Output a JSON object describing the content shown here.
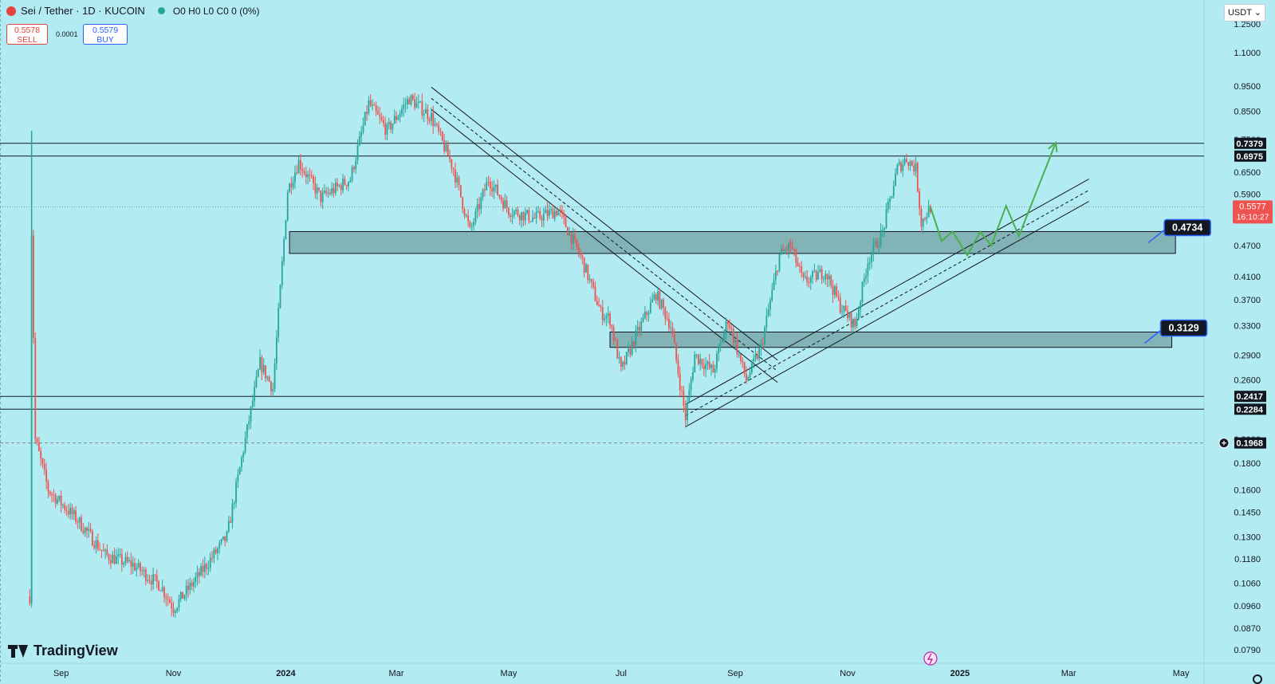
{
  "header": {
    "symbol": "Sei / Tether · 1D · KUCOIN",
    "ohlc": "O0 H0 L0 C0 0 (0%)"
  },
  "trade": {
    "sell_price": "0.5578",
    "sell_label": "SELL",
    "spread": "0.0001",
    "buy_price": "0.5579",
    "buy_label": "BUY"
  },
  "currency": "USDT",
  "brand": "TradingView",
  "colors": {
    "background": "#b2ebf2",
    "up": "#26a69a",
    "down": "#ef5350",
    "projection": "#4caf50",
    "last_price": "#ef5350"
  },
  "chart_data": {
    "type": "candlestick",
    "y_scale": "log",
    "ylim": [
      0.075,
      1.35
    ],
    "y_ticks": [
      "1.2500",
      "1.1000",
      "0.9500",
      "0.8500",
      "0.7500",
      "0.6500",
      "0.5900",
      "0.5300",
      "0.4700",
      "0.4100",
      "0.3700",
      "0.3300",
      "0.2900",
      "0.2600",
      "0.2000",
      "0.1800",
      "0.1600",
      "0.1450",
      "0.1300",
      "0.1180",
      "0.1060",
      "0.0960",
      "0.0870",
      "0.0790"
    ],
    "x_ticks": [
      "Sep",
      "Nov",
      "2024",
      "Mar",
      "May",
      "Jul",
      "Sep",
      "Nov",
      "2025",
      "Mar",
      "May"
    ],
    "price_path": [
      [
        "2023-08-15",
        0.1
      ],
      [
        "2023-08-16",
        0.5
      ],
      [
        "2023-08-18",
        0.2
      ],
      [
        "2023-08-25",
        0.16
      ],
      [
        "2023-09-10",
        0.14
      ],
      [
        "2023-09-25",
        0.12
      ],
      [
        "2023-10-10",
        0.115
      ],
      [
        "2023-10-25",
        0.105
      ],
      [
        "2023-11-01",
        0.095
      ],
      [
        "2023-11-15",
        0.11
      ],
      [
        "2023-11-30",
        0.13
      ],
      [
        "2023-12-10",
        0.2
      ],
      [
        "2023-12-18",
        0.28
      ],
      [
        "2023-12-25",
        0.25
      ],
      [
        "2024-01-02",
        0.6
      ],
      [
        "2024-01-08",
        0.68
      ],
      [
        "2024-01-20",
        0.58
      ],
      [
        "2024-02-05",
        0.63
      ],
      [
        "2024-02-15",
        0.88
      ],
      [
        "2024-02-25",
        0.78
      ],
      [
        "2024-03-08",
        0.9
      ],
      [
        "2024-03-20",
        0.83
      ],
      [
        "2024-04-01",
        0.66
      ],
      [
        "2024-04-10",
        0.5
      ],
      [
        "2024-04-20",
        0.63
      ],
      [
        "2024-05-01",
        0.55
      ],
      [
        "2024-05-15",
        0.53
      ],
      [
        "2024-05-28",
        0.55
      ],
      [
        "2024-06-10",
        0.44
      ],
      [
        "2024-06-20",
        0.35
      ],
      [
        "2024-06-25",
        0.34
      ],
      [
        "2024-07-01",
        0.27
      ],
      [
        "2024-07-08",
        0.31
      ],
      [
        "2024-07-20",
        0.38
      ],
      [
        "2024-07-28",
        0.33
      ],
      [
        "2024-08-05",
        0.22
      ],
      [
        "2024-08-10",
        0.29
      ],
      [
        "2024-08-20",
        0.27
      ],
      [
        "2024-08-28",
        0.34
      ],
      [
        "2024-09-07",
        0.26
      ],
      [
        "2024-09-15",
        0.3
      ],
      [
        "2024-09-25",
        0.45
      ],
      [
        "2024-10-01",
        0.47
      ],
      [
        "2024-10-08",
        0.4
      ],
      [
        "2024-10-20",
        0.42
      ],
      [
        "2024-10-28",
        0.36
      ],
      [
        "2024-11-05",
        0.33
      ],
      [
        "2024-11-12",
        0.44
      ],
      [
        "2024-11-20",
        0.5
      ],
      [
        "2024-11-28",
        0.66
      ],
      [
        "2024-12-03",
        0.69
      ],
      [
        "2024-12-08",
        0.66
      ],
      [
        "2024-12-11",
        0.52
      ],
      [
        "2024-12-16",
        0.5578
      ]
    ],
    "projection": [
      [
        "2024-12-16",
        0.5578
      ],
      [
        "2024-12-22",
        0.48
      ],
      [
        "2024-12-28",
        0.5
      ],
      [
        "2025-01-05",
        0.45
      ],
      [
        "2025-01-12",
        0.5
      ],
      [
        "2025-01-18",
        0.47
      ],
      [
        "2025-01-26",
        0.56
      ],
      [
        "2025-02-02",
        0.49
      ],
      [
        "2025-02-22",
        0.74
      ]
    ],
    "horizontal_levels": [
      {
        "label": "0.7379",
        "value": 0.7379
      },
      {
        "label": "0.6975",
        "value": 0.6975
      },
      {
        "label": "0.2417",
        "value": 0.2417
      },
      {
        "label": "0.2284",
        "value": 0.2284
      }
    ],
    "dashed_level": {
      "label": "0.1968",
      "value": 0.1968
    },
    "zones": [
      {
        "label": "0.4734",
        "from": "2024-01-03",
        "to": "2025-04-28",
        "low": 0.454,
        "high": 0.5
      },
      {
        "label": "0.3129",
        "from": "2024-06-25",
        "to": "2025-04-26",
        "low": 0.3,
        "high": 0.321
      }
    ],
    "descending_channel": {
      "from": [
        "2024-03-20",
        0.9
      ],
      "to": [
        "2024-09-24",
        0.27
      ],
      "offset": 0.028
    },
    "ascending_channel": {
      "from": [
        "2024-08-05",
        0.222
      ],
      "to": [
        "2025-03-12",
        0.6
      ],
      "offset": 0.028
    },
    "last_price": {
      "value": "0.5577",
      "countdown": "16:10:27"
    }
  }
}
